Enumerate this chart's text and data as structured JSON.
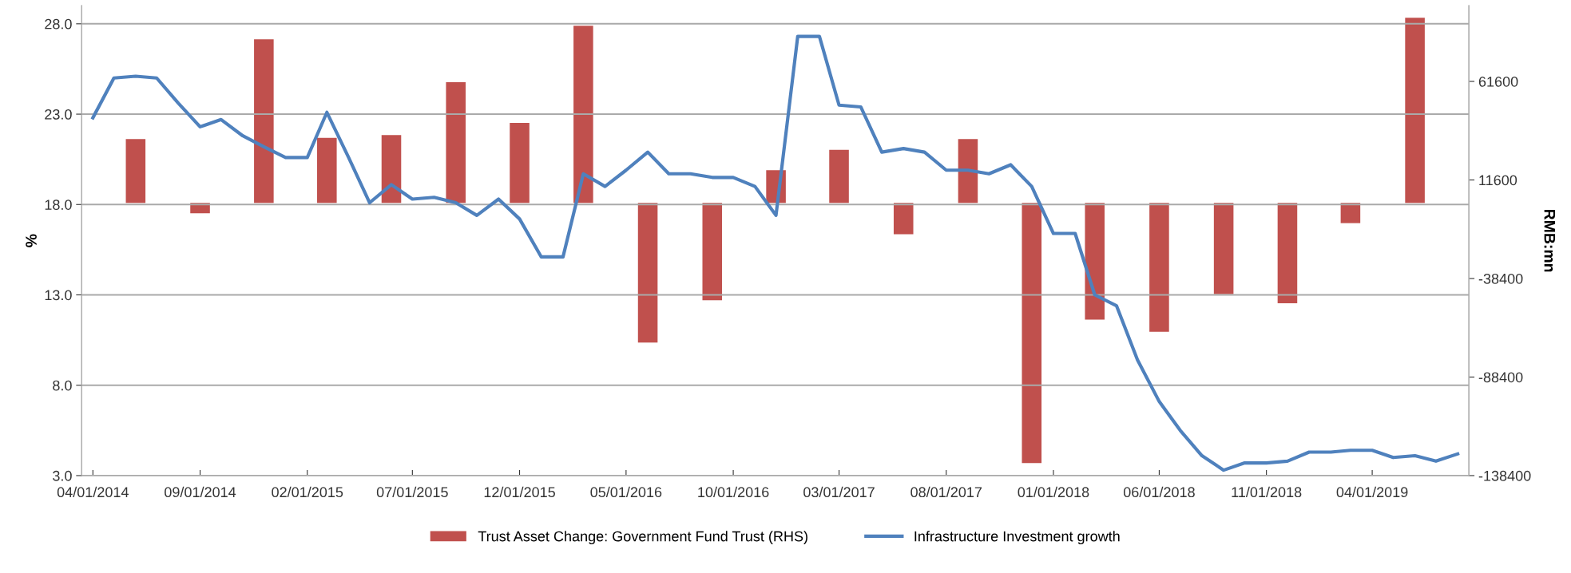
{
  "chart_data": {
    "type": "bar",
    "ylabel": "%",
    "y2label": "RMB:mn",
    "series": [
      {
        "name": "Trust Asset Change: Government Fund Trust (RHS)",
        "axis": "y2",
        "color": "#c0504d",
        "x": [
          "2014-06",
          "2014-09",
          "2014-12",
          "2015-03",
          "2015-06",
          "2015-09",
          "2015-12",
          "2016-03",
          "2016-06",
          "2016-09",
          "2016-12",
          "2017-03",
          "2017-06",
          "2017-09",
          "2017-12",
          "2018-03",
          "2018-06",
          "2018-09",
          "2018-12",
          "2019-03",
          "2019-06"
        ],
        "values": [
          32400,
          -5300,
          83000,
          33000,
          34400,
          61200,
          40600,
          89800,
          -70900,
          -49400,
          16600,
          26900,
          -15900,
          32400,
          -132000,
          -59300,
          -65400,
          -46300,
          -51000,
          -10300,
          93900
        ]
      },
      {
        "name": "Infrastructure Investment growth",
        "type": "line",
        "color": "#4f81bd",
        "x": [
          "2014-04",
          "2014-05",
          "2014-06",
          "2014-07",
          "2014-08",
          "2014-09",
          "2014-10",
          "2014-11",
          "2014-12",
          "2015-01",
          "2015-02",
          "2015-03",
          "2015-04",
          "2015-05",
          "2015-06",
          "2015-07",
          "2015-08",
          "2015-09",
          "2015-10",
          "2015-11",
          "2015-12",
          "2016-01",
          "2016-02",
          "2016-03",
          "2016-04",
          "2016-05",
          "2016-06",
          "2016-07",
          "2016-08",
          "2016-09",
          "2016-10",
          "2016-11",
          "2016-12",
          "2017-01",
          "2017-02",
          "2017-03",
          "2017-04",
          "2017-05",
          "2017-06",
          "2017-07",
          "2017-08",
          "2017-09",
          "2017-10",
          "2017-11",
          "2017-12",
          "2018-01",
          "2018-02",
          "2018-03",
          "2018-04",
          "2018-05",
          "2018-06",
          "2018-07",
          "2018-08",
          "2018-09",
          "2018-10",
          "2018-11",
          "2018-12",
          "2019-01",
          "2019-02",
          "2019-03",
          "2019-04",
          "2019-05",
          "2019-06",
          "2019-07",
          "2019-08"
        ],
        "values": [
          22.8,
          25.0,
          25.1,
          25.0,
          23.6,
          22.3,
          22.7,
          21.8,
          21.2,
          20.6,
          20.6,
          23.1,
          20.6,
          18.1,
          19.1,
          18.3,
          18.4,
          18.1,
          17.4,
          18.3,
          17.2,
          15.1,
          15.1,
          19.7,
          19.0,
          19.9,
          20.9,
          19.7,
          19.7,
          19.5,
          19.5,
          19.0,
          17.4,
          27.3,
          27.3,
          23.5,
          23.4,
          20.9,
          21.1,
          20.9,
          19.9,
          19.9,
          19.7,
          20.2,
          19.0,
          16.4,
          16.4,
          13.0,
          12.4,
          9.4,
          7.1,
          5.5,
          4.1,
          3.3,
          3.7,
          3.7,
          3.8,
          4.3,
          4.3,
          4.4,
          4.4,
          4.0,
          4.1,
          3.8,
          4.2
        ]
      }
    ],
    "xlim": [
      "2014-03-16",
      "2019-08-17"
    ],
    "xticks": [
      {
        "value": "2014-04",
        "label": "04/01/2014"
      },
      {
        "value": "2014-09",
        "label": "09/01/2014"
      },
      {
        "value": "2015-02",
        "label": "02/01/2015"
      },
      {
        "value": "2015-07",
        "label": "07/01/2015"
      },
      {
        "value": "2015-12",
        "label": "12/01/2015"
      },
      {
        "value": "2016-05",
        "label": "05/01/2016"
      },
      {
        "value": "2016-10",
        "label": "10/01/2016"
      },
      {
        "value": "2017-03",
        "label": "03/01/2017"
      },
      {
        "value": "2017-08",
        "label": "08/01/2017"
      },
      {
        "value": "2018-01",
        "label": "01/01/2018"
      },
      {
        "value": "2018-06",
        "label": "06/01/2018"
      },
      {
        "value": "2018-11",
        "label": "11/01/2018"
      },
      {
        "value": "2019-04",
        "label": "04/01/2019"
      }
    ],
    "ylim": [
      3,
      29
    ],
    "yticks": [
      {
        "value": 3,
        "label": "3.0"
      },
      {
        "value": 8,
        "label": "8.0"
      },
      {
        "value": 13,
        "label": "13.0"
      },
      {
        "value": 18,
        "label": "18.0"
      },
      {
        "value": 23,
        "label": "23.0"
      },
      {
        "value": 28,
        "label": "28.0"
      }
    ],
    "y2lim": [
      -138400,
      100000
    ],
    "y2ticks": [
      -138400,
      -88400,
      -38400,
      11600,
      61600
    ],
    "grid": "y",
    "legend": "bottom"
  }
}
